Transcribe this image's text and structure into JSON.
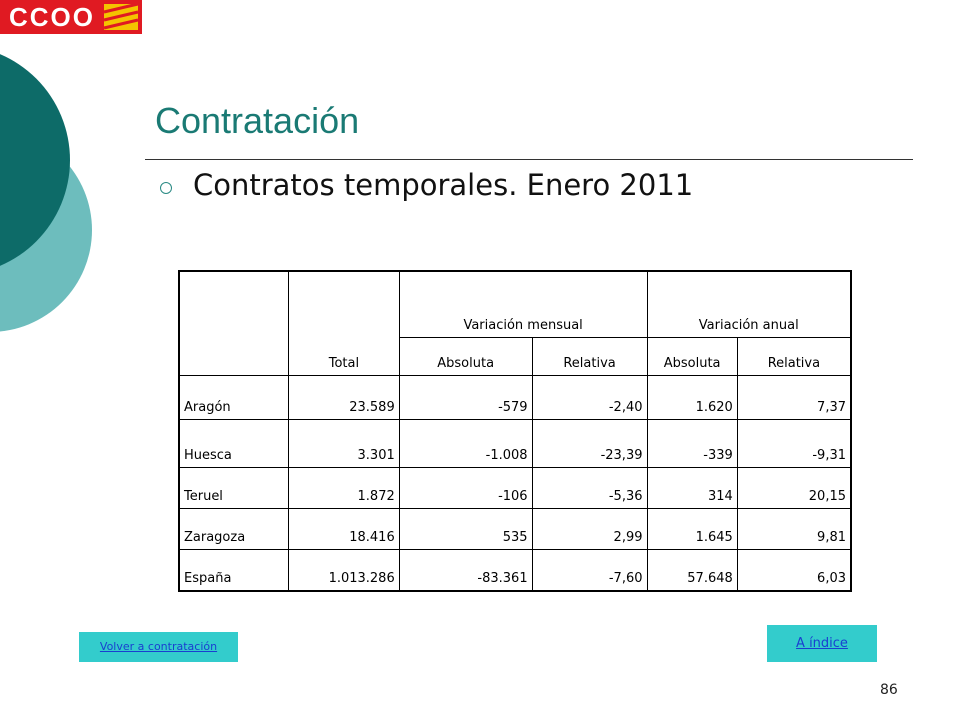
{
  "logo": "CCOO",
  "title": "Contratación",
  "bullet": "Contratos temporales. Enero 2011",
  "table": {
    "header_top": [
      "Variación mensual",
      "Variación anual"
    ],
    "header_total": "Total",
    "header_sub": [
      "Absoluta",
      "Relativa",
      "Absoluta",
      "Relativa"
    ],
    "rows": [
      [
        "Aragón",
        "23.589",
        "-579",
        "-2,40",
        "1.620",
        "7,37"
      ],
      [
        "Huesca",
        "3.301",
        "-1.008",
        "-23,39",
        "-339",
        "-9,31"
      ],
      [
        "Teruel",
        "1.872",
        "-106",
        "-5,36",
        "314",
        "20,15"
      ],
      [
        "Zaragoza",
        "18.416",
        "535",
        "2,99",
        "1.645",
        "9,81"
      ],
      [
        "España",
        "1.013.286",
        "-83.361",
        "-7,60",
        "57.648",
        "6,03"
      ]
    ]
  },
  "links": {
    "back": "Volver a contratación",
    "index": "A índice"
  },
  "page_number": "86"
}
